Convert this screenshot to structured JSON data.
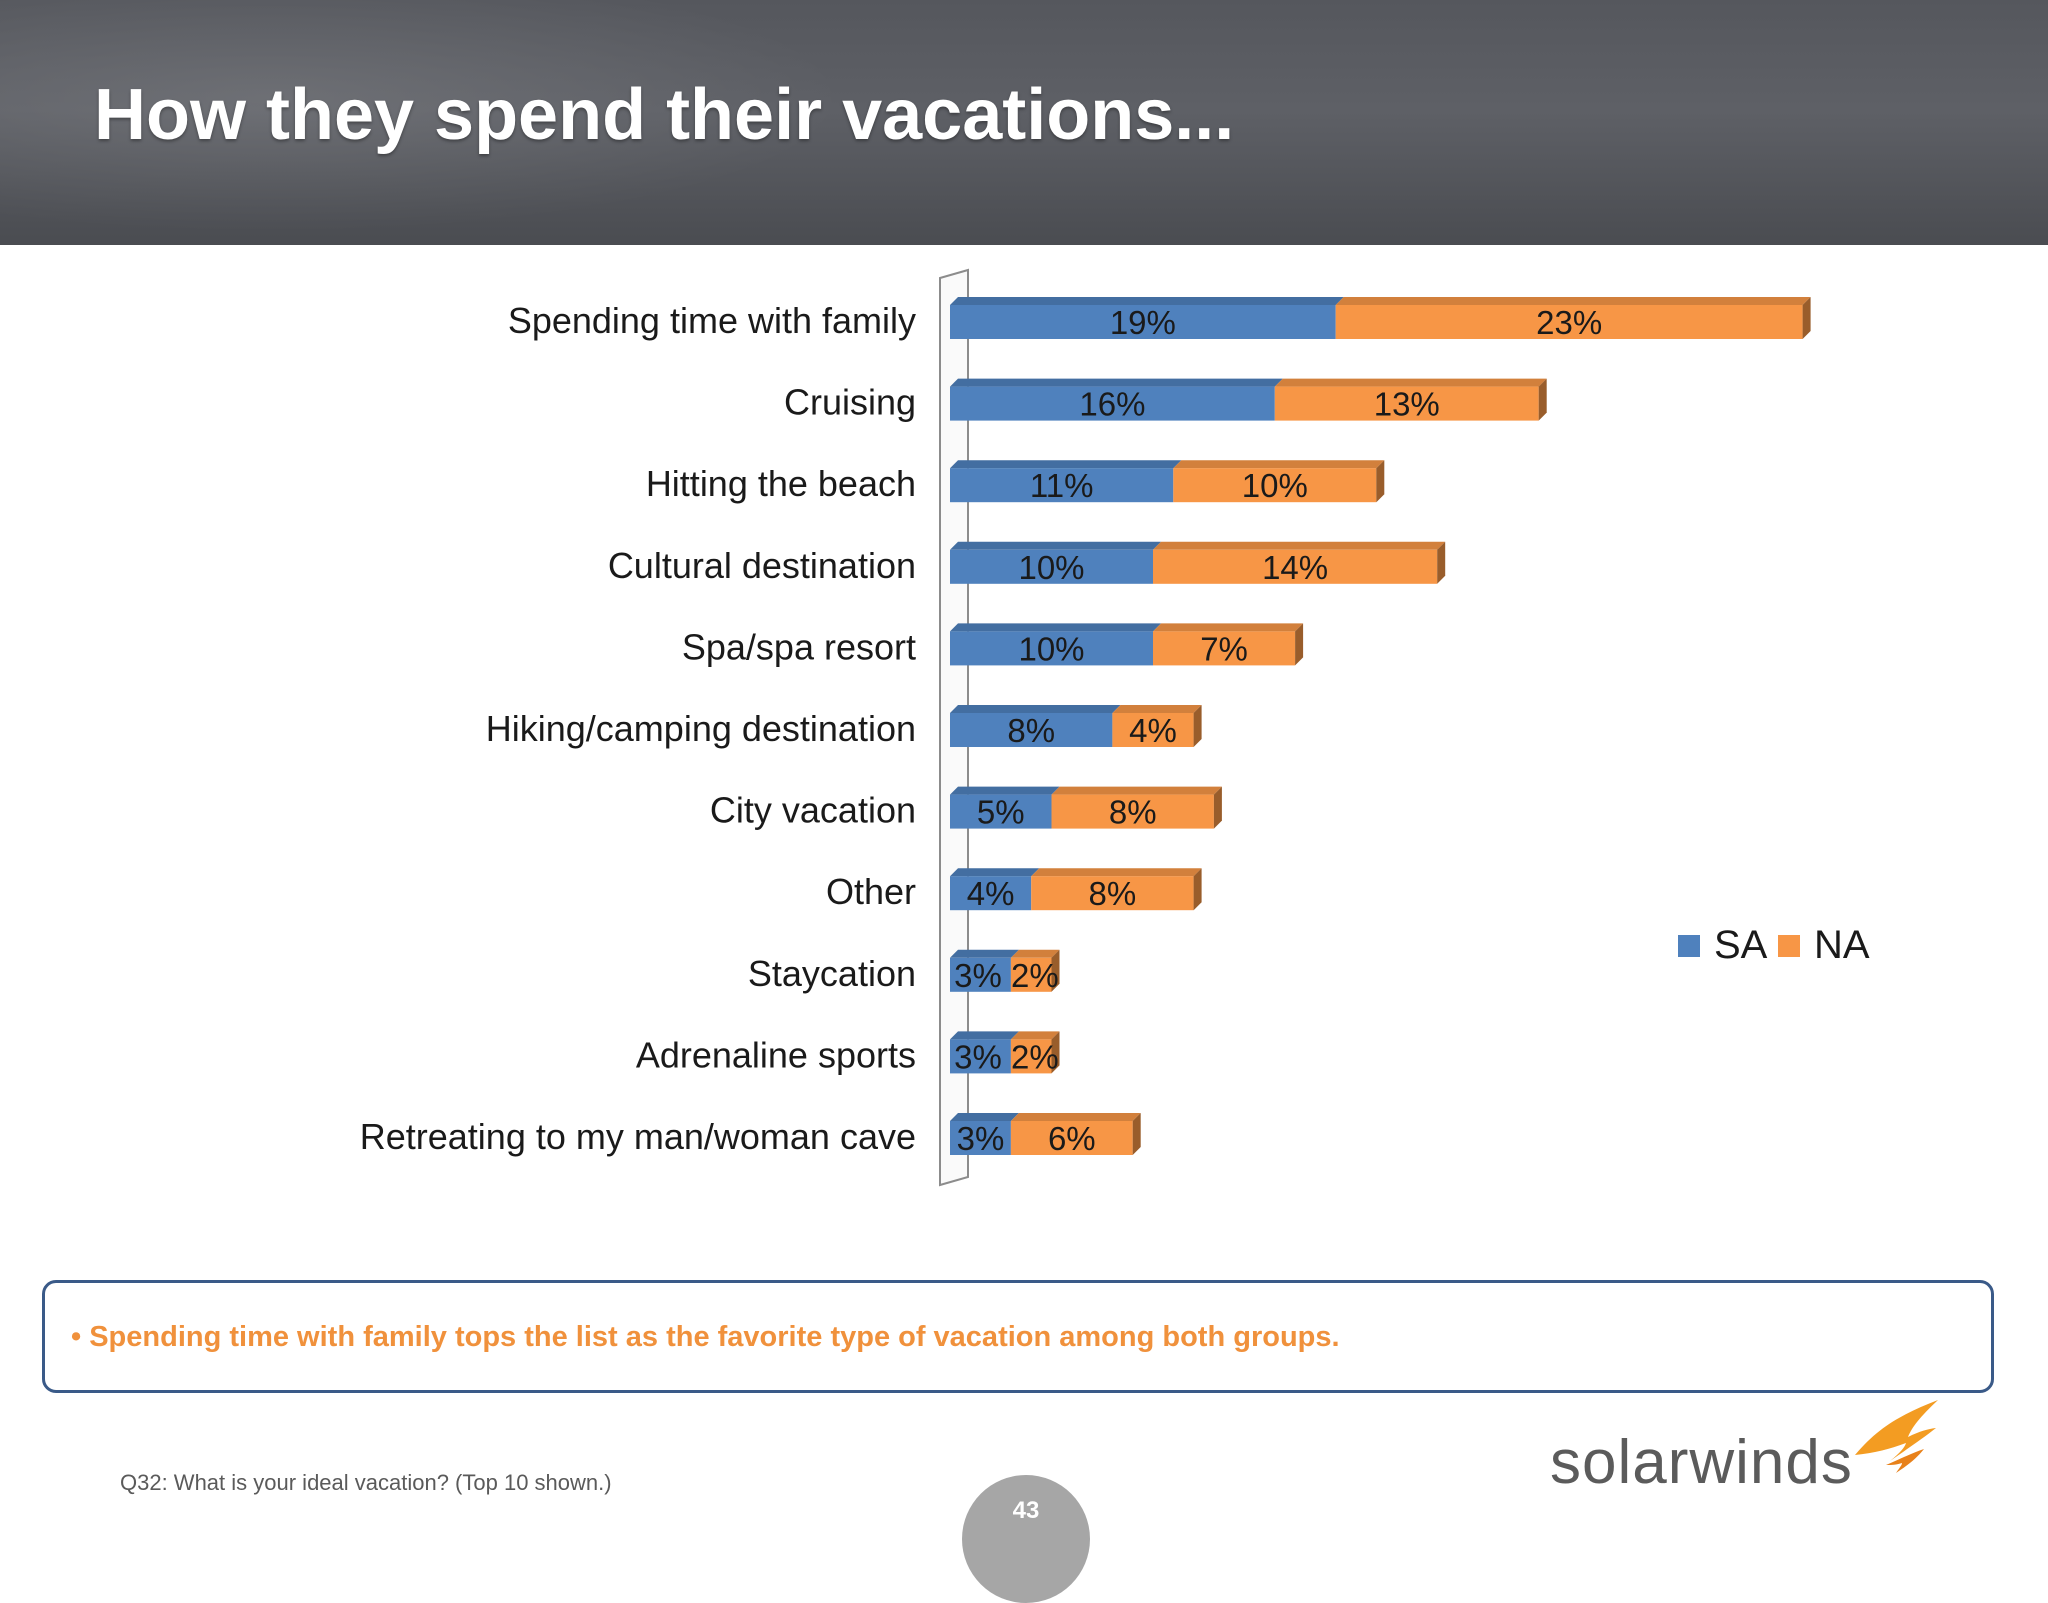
{
  "slide": {
    "title": "How they spend their vacations...",
    "callout": "• Spending time with family tops the list as the favorite type of vacation among both groups.",
    "footnote": "Q32: What is your ideal vacation? (Top 10 shown.)",
    "page_number": "43",
    "logo_text": "solarwinds"
  },
  "colors": {
    "sa": "#4f81bd",
    "na": "#f79646",
    "header": "#55575d",
    "callout_text": "#f0913c"
  },
  "chart_data": {
    "type": "bar",
    "orientation": "horizontal",
    "stacked": true,
    "style": "3d",
    "categories": [
      "Spending time with family",
      "Cruising",
      "Hitting the beach",
      "Cultural destination",
      "Spa/spa resort",
      "Hiking/camping destination",
      "City vacation",
      "Other",
      "Staycation",
      "Adrenaline sports",
      "Retreating to my man/woman cave"
    ],
    "series": [
      {
        "name": "SA",
        "values": [
          19,
          16,
          11,
          10,
          10,
          8,
          5,
          4,
          3,
          3,
          3
        ],
        "labels": [
          "19%",
          "16%",
          "11%",
          "10%",
          "10%",
          "8%",
          "5%",
          "4%",
          "3%",
          "3%",
          "3%"
        ]
      },
      {
        "name": "NA",
        "values": [
          23,
          13,
          10,
          14,
          7,
          4,
          8,
          8,
          2,
          2,
          6
        ],
        "labels": [
          "23%",
          "13%",
          "10%",
          "14%",
          "7%",
          "4%",
          "8%",
          "8%",
          "2%",
          "2%",
          "6%"
        ]
      }
    ],
    "legend_position": "right",
    "grid": false,
    "axis_labels_shown": false
  }
}
